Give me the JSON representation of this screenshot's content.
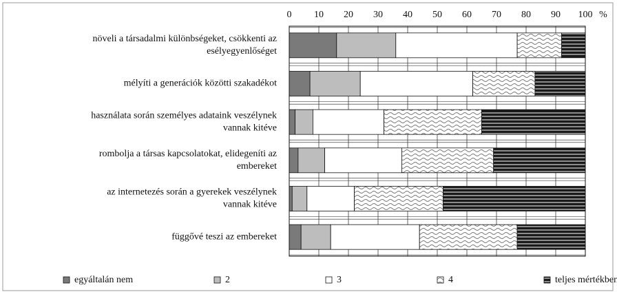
{
  "chart_data": {
    "type": "stacked_bar_horizontal",
    "categories": [
      [
        "növeli a társadalmi különbségeket, csökkenti az",
        "esélyegyenlőséget"
      ],
      [
        "mélyíti a generációk közötti szakadékot"
      ],
      [
        "használata során személyes adataink veszélynek",
        "vannak kitéve"
      ],
      [
        "rombolja a társas kapcsolatokat, elidegeníti az",
        "embereket"
      ],
      [
        "az internetezés során a gyerekek veszélynek",
        "vannak kitéve"
      ],
      [
        "függővé teszi az embereket"
      ]
    ],
    "series": [
      {
        "name": "egyáltalán nem",
        "color": "#7a7a7a",
        "values": [
          16,
          7,
          2,
          3,
          1,
          4
        ]
      },
      {
        "name": "2",
        "color": "#bdbdbd",
        "values": [
          20,
          17,
          6,
          9,
          5,
          10
        ]
      },
      {
        "name": "3",
        "color": "#ffffff",
        "values": [
          41,
          38,
          24,
          26,
          16,
          30
        ]
      },
      {
        "name": "4",
        "color": "#ffffff",
        "pattern": "wave",
        "values": [
          15,
          21,
          33,
          31,
          30,
          33
        ]
      },
      {
        "name": "teljes mértékben",
        "color": "#1a1a1a",
        "pattern": "stripes",
        "values": [
          8,
          17,
          35,
          31,
          48,
          23
        ]
      }
    ],
    "xlim": [
      0,
      100
    ],
    "xticks": [
      0,
      10,
      20,
      30,
      40,
      50,
      60,
      70,
      80,
      90,
      100
    ],
    "xlabel": "%",
    "grid": true,
    "legend": "bottom"
  }
}
